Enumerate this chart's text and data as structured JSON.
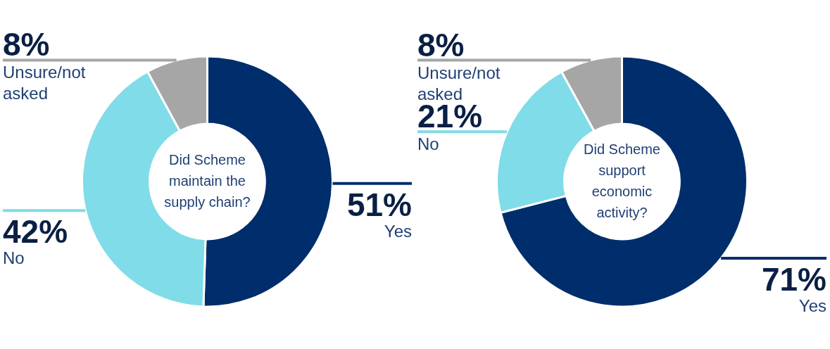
{
  "chart_data": [
    {
      "type": "donut",
      "title": "Did Scheme maintain the supply chain?",
      "categories": [
        "Yes",
        "No",
        "Unsure/not asked"
      ],
      "values": [
        51,
        42,
        8
      ],
      "value_labels": [
        "51%",
        "42%",
        "8%"
      ],
      "colors": [
        "#002d6b",
        "#7fdce8",
        "#a6a6a6"
      ],
      "legend": false
    },
    {
      "type": "donut",
      "title": "Did Scheme support economic activity?",
      "categories": [
        "Yes",
        "No",
        "Unsure/not asked"
      ],
      "values": [
        71,
        21,
        8
      ],
      "value_labels": [
        "71%",
        "21%",
        "8%"
      ],
      "colors": [
        "#002d6b",
        "#7fdce8",
        "#a6a6a6"
      ],
      "legend": false
    }
  ]
}
